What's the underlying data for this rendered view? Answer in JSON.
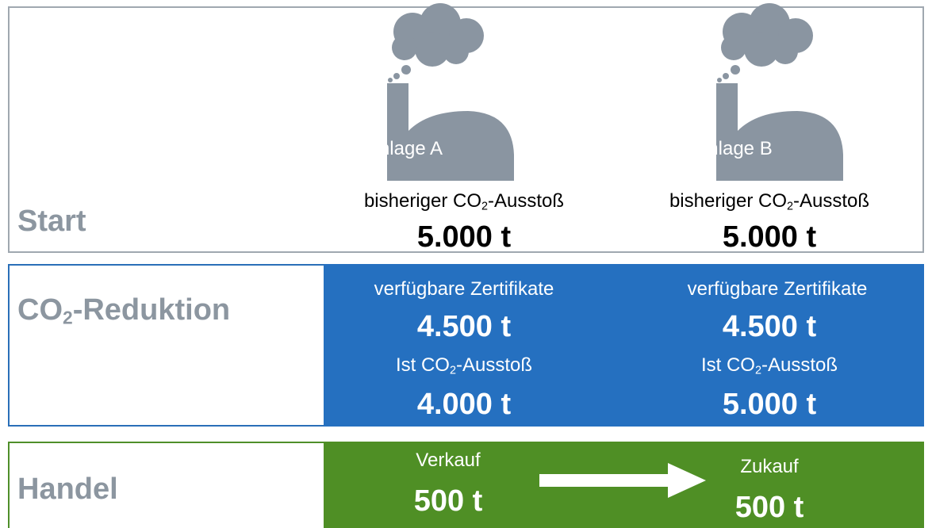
{
  "start": {
    "label": "Start",
    "plants": [
      {
        "name": "Anlage A",
        "caption": {
          "pre": "bisheriger CO",
          "sub": "2",
          "post": "-Ausstoß"
        },
        "value": "5.000 t"
      },
      {
        "name": "Anlage B",
        "caption": {
          "pre": "bisheriger CO",
          "sub": "2",
          "post": "-Ausstoß"
        },
        "value": "5.000 t"
      }
    ]
  },
  "reduction": {
    "label": {
      "pre": "CO",
      "sub": "2",
      "post": "-Reduktion"
    },
    "plants": [
      {
        "certificates_label": "verfügbare Zertifikate",
        "certificates": "4.500 t",
        "emissions_label": {
          "pre": "Ist CO",
          "sub": "2",
          "post": "-Ausstoß"
        },
        "emissions": "4.000 t"
      },
      {
        "certificates_label": "verfügbare Zertifikate",
        "certificates": "4.500 t",
        "emissions_label": {
          "pre": "Ist CO",
          "sub": "2",
          "post": "-Ausstoß"
        },
        "emissions": "5.000 t"
      }
    ]
  },
  "trade": {
    "label": "Handel",
    "sell": {
      "label": "Verkauf",
      "value": "500 t"
    },
    "buy": {
      "label": "Zukauf",
      "value": "500 t"
    }
  }
}
